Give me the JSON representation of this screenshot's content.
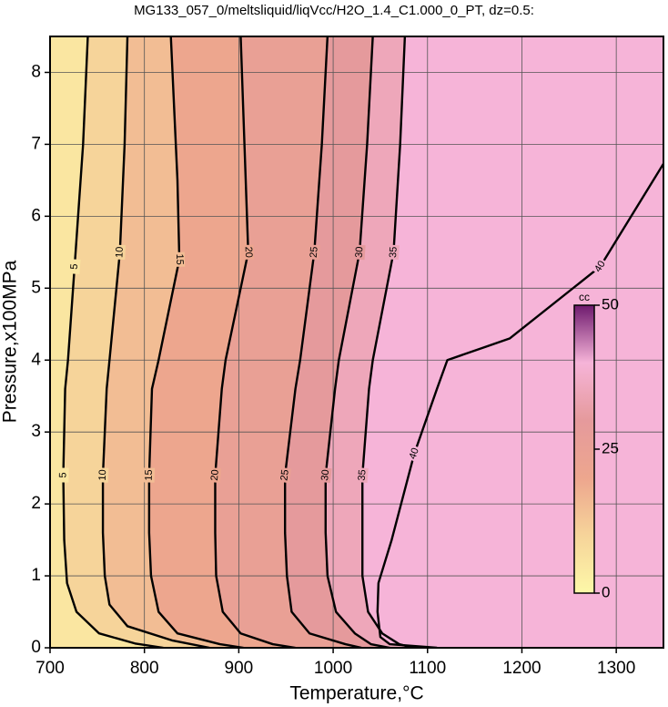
{
  "chart_data": {
    "type": "contour",
    "title": "MG133_057_0/meltsliquid/liqVcc/H2O_1.4_C1.000_0_PT, dz=0.5:",
    "x_label": "Temperature,°C",
    "y_label": "Pressure,x100MPa",
    "xlim": [
      700,
      1350
    ],
    "ylim": [
      0,
      8.5
    ],
    "xticks": [
      700,
      800,
      900,
      1000,
      1100,
      1200,
      1300
    ],
    "yticks": [
      0,
      1,
      2,
      3,
      4,
      5,
      6,
      7,
      8
    ],
    "grid": true,
    "line_color": "#000000",
    "contours": [
      {
        "level": 5,
        "x": [
          820,
          790,
          752,
          728,
          718,
          715,
          714,
          716,
          719,
          726,
          735,
          740
        ],
        "y": [
          0,
          0.06,
          0.2,
          0.5,
          0.9,
          1.5,
          2.4,
          3.6,
          4.0,
          5.3,
          7.0,
          8.5
        ]
      },
      {
        "level": 10,
        "x": [
          869,
          830,
          782,
          763,
          758,
          756,
          756,
          760,
          763,
          774,
          779,
          782
        ],
        "y": [
          0,
          0.1,
          0.3,
          0.6,
          1.0,
          1.6,
          2.4,
          3.6,
          4.0,
          5.5,
          7.0,
          8.5
        ]
      },
      {
        "level": 15,
        "x": [
          905,
          880,
          835,
          815,
          807,
          805,
          805,
          808,
          815,
          837,
          835,
          828
        ],
        "y": [
          0,
          0.05,
          0.2,
          0.5,
          1.0,
          1.6,
          2.4,
          3.6,
          4.0,
          5.4,
          6.5,
          8.5
        ]
      },
      {
        "level": 20,
        "x": [
          960,
          936,
          902,
          883,
          876,
          875,
          875,
          882,
          886,
          910,
          906,
          902
        ],
        "y": [
          0,
          0.05,
          0.2,
          0.5,
          1.0,
          1.6,
          2.4,
          3.6,
          4.0,
          5.5,
          7.0,
          8.5
        ]
      },
      {
        "level": 25,
        "x": [
          1030,
          1013,
          975,
          956,
          951,
          949,
          949,
          960,
          965,
          980,
          988,
          994
        ],
        "y": [
          0,
          0.05,
          0.2,
          0.5,
          1.0,
          1.6,
          2.4,
          3.6,
          4.0,
          5.5,
          7.0,
          8.5
        ]
      },
      {
        "level": 30,
        "x": [
          1060,
          1040,
          1023,
          1003,
          994,
          992,
          992,
          1002,
          1006,
          1028,
          1036,
          1042
        ],
        "y": [
          0,
          0.05,
          0.2,
          0.5,
          1.0,
          1.6,
          2.4,
          3.6,
          4.0,
          5.5,
          7.0,
          8.5
        ]
      },
      {
        "level": 35,
        "x": [
          1085,
          1070,
          1052,
          1037,
          1031,
          1031,
          1031,
          1038,
          1042,
          1064,
          1071,
          1076
        ],
        "y": [
          0,
          0.05,
          0.2,
          0.5,
          1.0,
          1.6,
          2.4,
          3.6,
          4.0,
          5.5,
          7.0,
          8.5
        ]
      },
      {
        "level": 40,
        "x": [
          1110,
          1060,
          1050,
          1047,
          1048,
          1062,
          1086,
          1110,
          1121,
          1187,
          1283,
          1350
        ],
        "y": [
          0,
          0.05,
          0.15,
          0.5,
          0.9,
          1.5,
          2.7,
          3.6,
          4.0,
          4.3,
          5.3,
          6.73
        ]
      }
    ],
    "colorbar": {
      "label": "cc",
      "lim": [
        0,
        50
      ],
      "ticks": [
        0,
        25,
        50
      ],
      "colors": [
        "#fdf8a8",
        "#f6d49a",
        "#eda68e",
        "#e59a9c",
        "#f6b4d8",
        "#6e1a6e"
      ]
    }
  }
}
